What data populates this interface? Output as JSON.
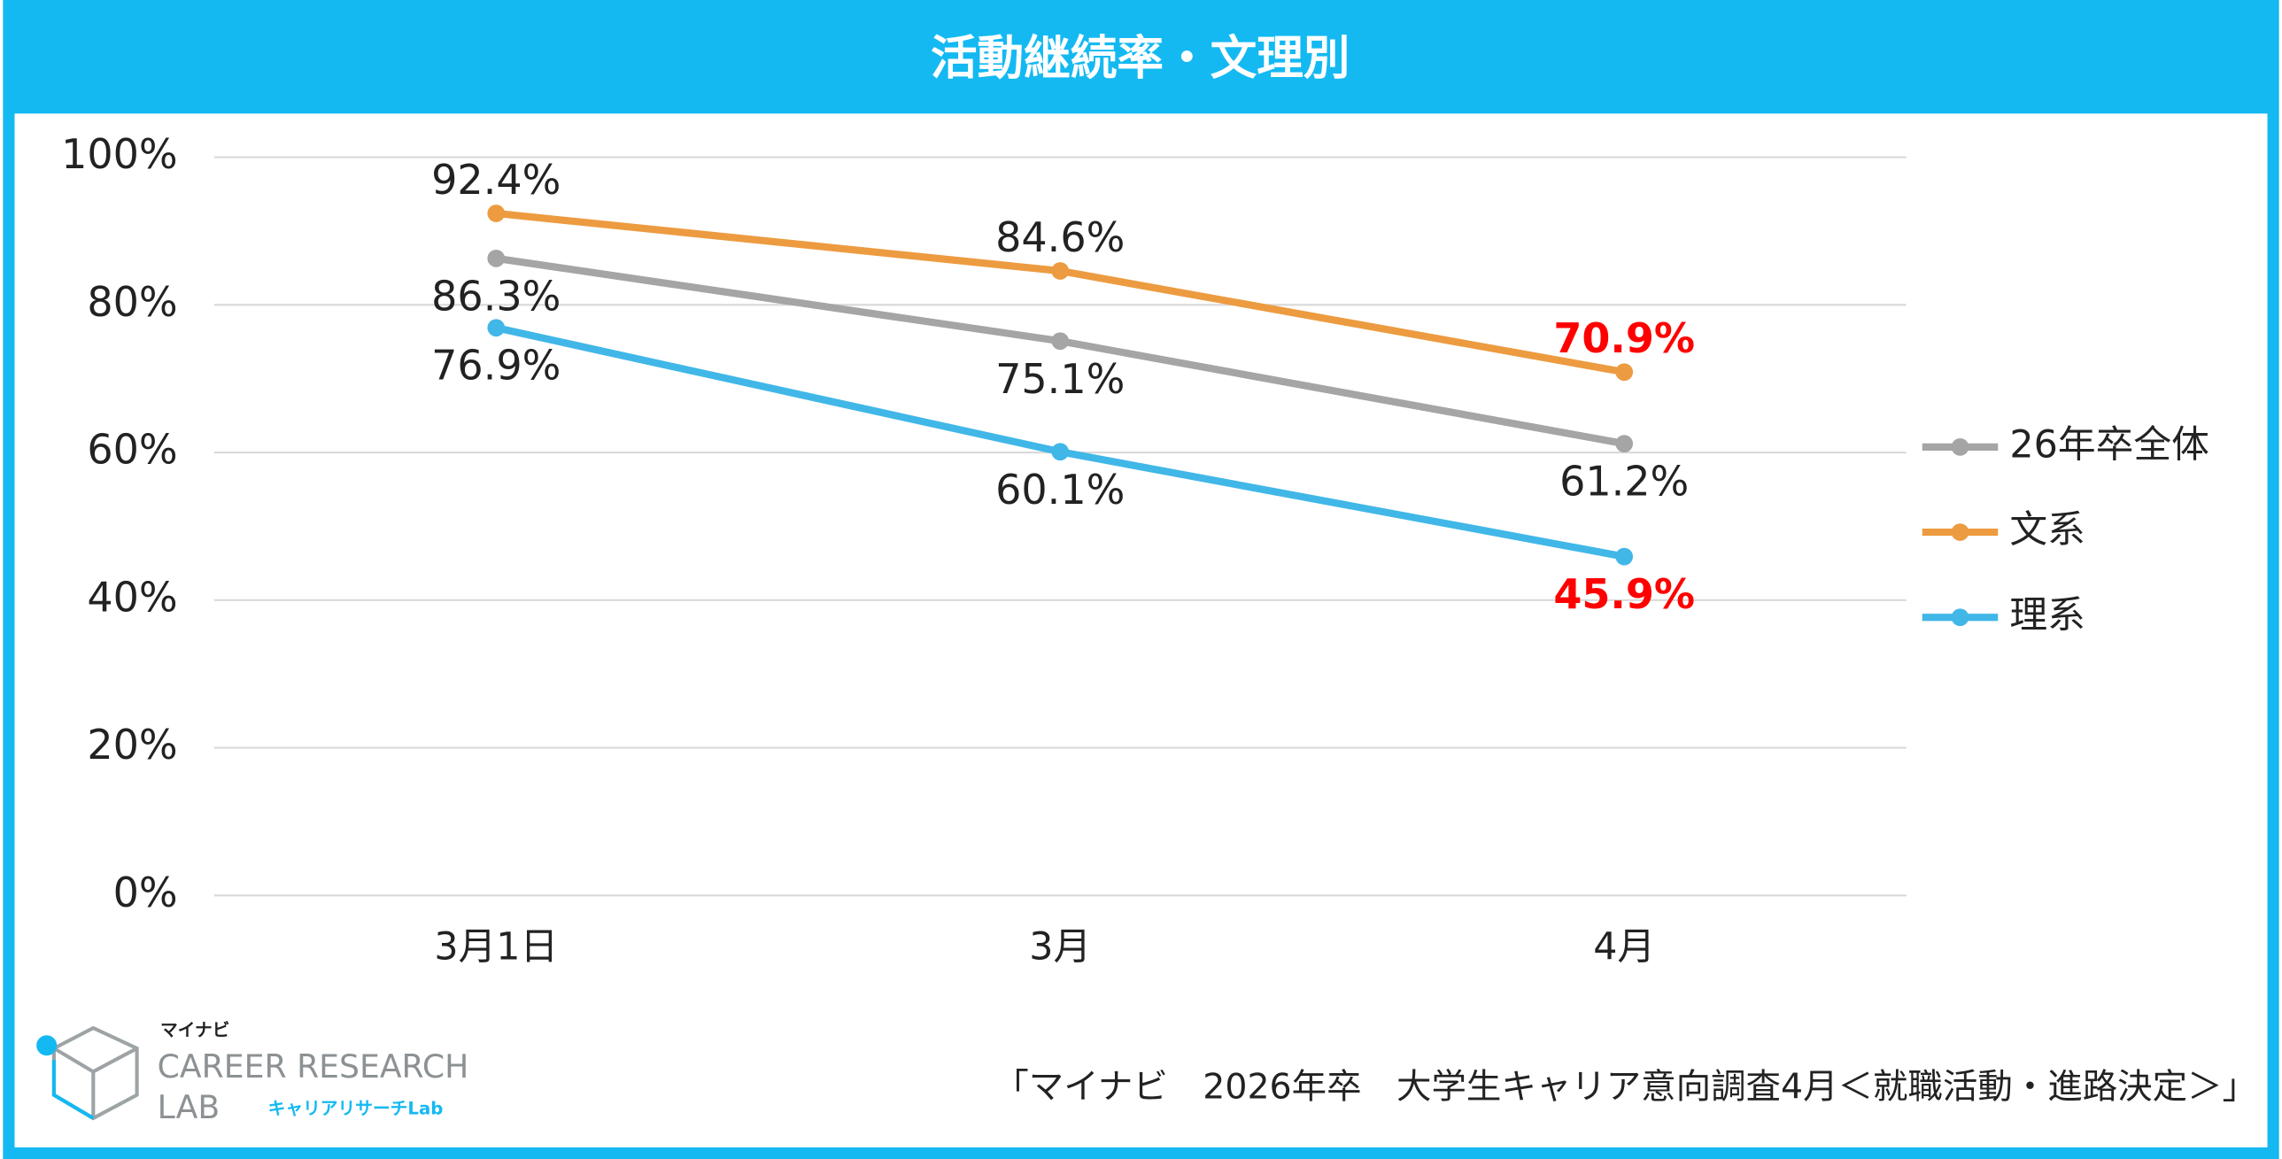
{
  "chart_data": {
    "type": "line",
    "title": "活動継続率・文理別",
    "categories": [
      "3月1日",
      "3月",
      "4月"
    ],
    "series": [
      {
        "name": "26年卒全体",
        "color": "#a5a5a5",
        "values": [
          86.3,
          75.1,
          61.2
        ],
        "value_labels": [
          "86.3%",
          "75.1%",
          "61.2%"
        ],
        "label_colors": [
          "#222222",
          "#222222",
          "#222222"
        ],
        "label_position": "below"
      },
      {
        "name": "文系",
        "color": "#ed9b40",
        "values": [
          92.4,
          84.6,
          70.9
        ],
        "value_labels": [
          "92.4%",
          "84.6%",
          "70.9%"
        ],
        "label_colors": [
          "#222222",
          "#222222",
          "#ff0000"
        ],
        "label_position": "above"
      },
      {
        "name": "理系",
        "color": "#41b7e8",
        "values": [
          76.9,
          60.1,
          45.9
        ],
        "value_labels": [
          "76.9%",
          "60.1%",
          "45.9%"
        ],
        "label_colors": [
          "#222222",
          "#222222",
          "#ff0000"
        ],
        "label_position": "below"
      }
    ],
    "ylim": [
      0,
      100
    ],
    "yticks": [
      {
        "value": 0,
        "label": "0%"
      },
      {
        "value": 20,
        "label": "20%"
      },
      {
        "value": 40,
        "label": "40%"
      },
      {
        "value": 60,
        "label": "60%"
      },
      {
        "value": 80,
        "label": "80%"
      },
      {
        "value": 100,
        "label": "100%"
      }
    ],
    "grid": true,
    "legend": "right"
  },
  "footer": {
    "logo_top": "マイナビ",
    "logo_main": "CAREER RESEARCH",
    "logo_lab": "LAB",
    "logo_sub": "キャリアリサーチLab",
    "source": "「マイナビ　2026年卒　大学生キャリア意向調査4月＜就職活動・進路決定＞」"
  }
}
